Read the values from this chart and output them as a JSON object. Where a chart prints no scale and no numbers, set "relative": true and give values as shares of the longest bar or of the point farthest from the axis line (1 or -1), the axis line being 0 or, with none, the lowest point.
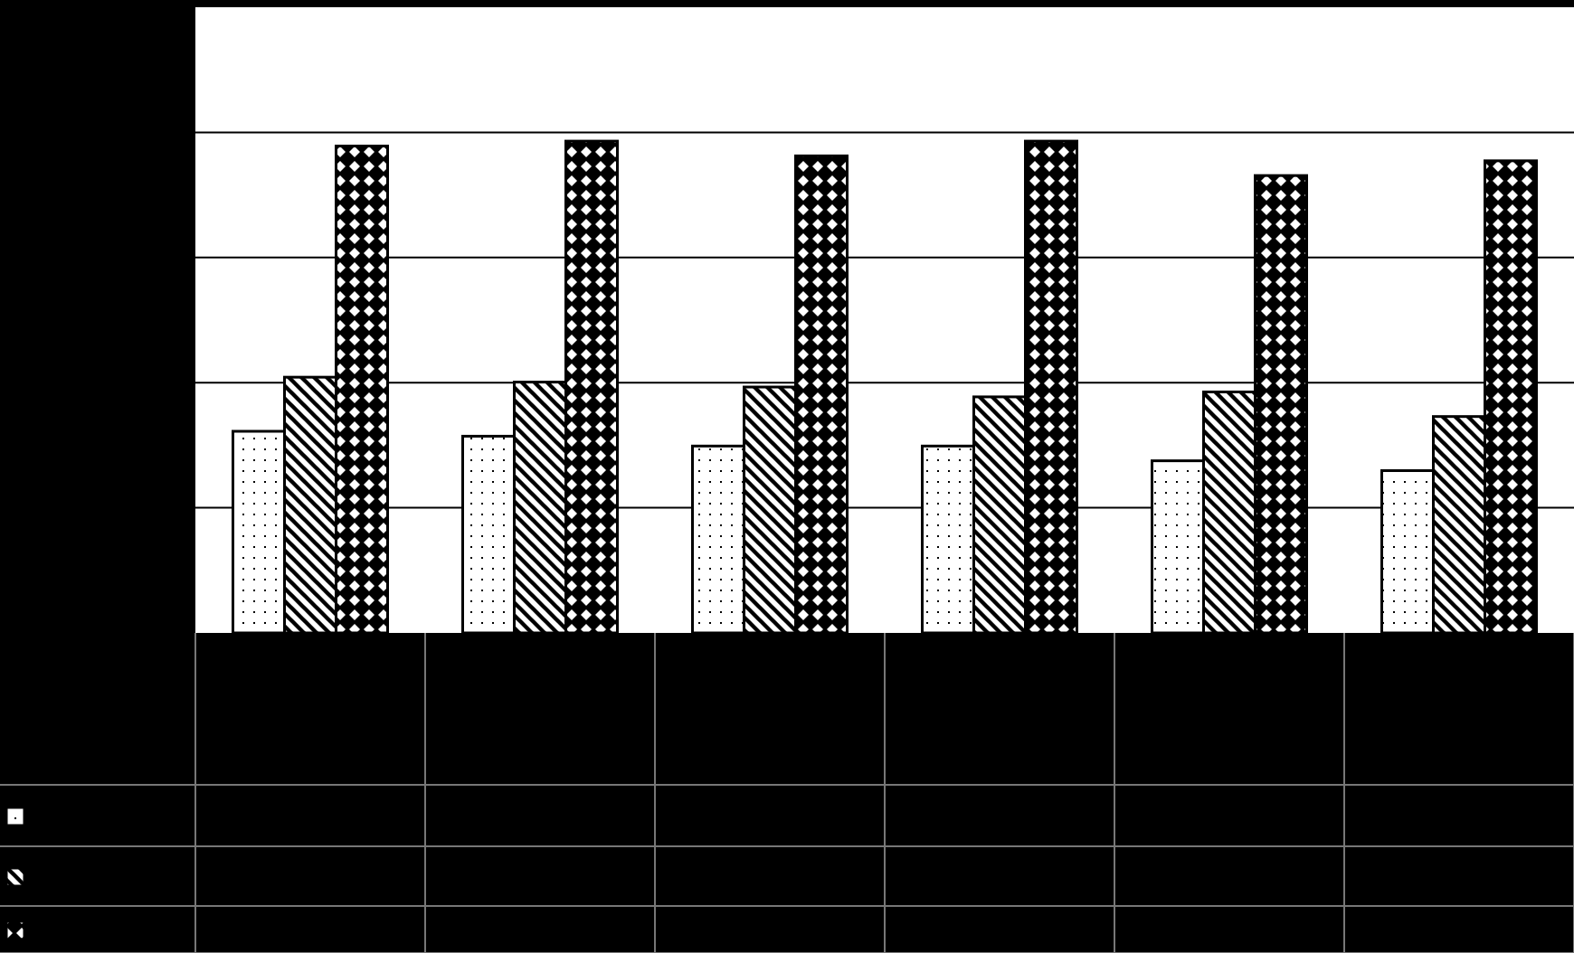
{
  "chart_data": {
    "type": "bar",
    "relative": true,
    "grid": true,
    "categories": [
      null,
      null,
      null,
      null,
      null,
      null
    ],
    "series": [
      {
        "color": "#000000",
        "values": [
          0.41,
          0.4,
          0.38,
          0.38,
          0.35,
          0.33
        ]
      },
      {
        "color": "#000000",
        "values": [
          0.52,
          0.51,
          0.5,
          0.48,
          0.49,
          0.44
        ]
      },
      {
        "color": "#000000",
        "values": [
          0.99,
          1,
          0.97,
          1,
          0.93,
          0.96
        ]
      }
    ]
  }
}
